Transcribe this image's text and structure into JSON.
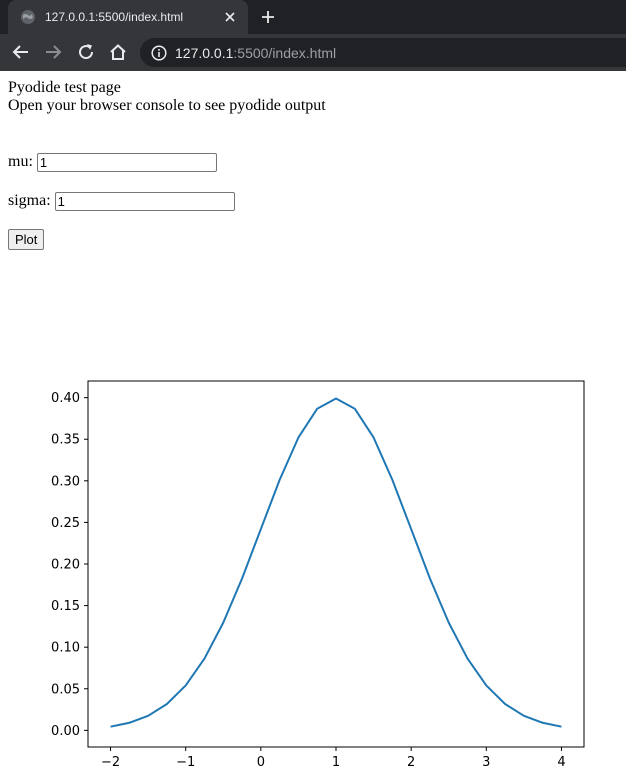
{
  "browser": {
    "tab_title": "127.0.0.1:5500/index.html",
    "url_host": "127.0.0.1",
    "url_rest": ":5500/index.html",
    "icons": [
      "globe-icon",
      "close-icon",
      "plus-icon",
      "back-arrow-icon",
      "forward-arrow-icon",
      "reload-icon",
      "home-icon",
      "info-icon"
    ]
  },
  "page": {
    "heading": "Pyodide test page",
    "subheading": "Open your browser console to see pyodide output",
    "mu_label": "mu:",
    "mu_value": "1",
    "sigma_label": "sigma:",
    "sigma_value": "1",
    "plot_button": "Plot"
  },
  "chart_data": {
    "type": "line",
    "title": "",
    "xlabel": "",
    "ylabel": "",
    "xlim": [
      -2.3,
      4.3
    ],
    "ylim": [
      -0.02,
      0.42
    ],
    "x_ticks": [
      -2,
      -1,
      0,
      1,
      2,
      3,
      4
    ],
    "x_tick_labels": [
      "−2",
      "−1",
      "0",
      "1",
      "2",
      "3",
      "4"
    ],
    "y_ticks": [
      0.0,
      0.05,
      0.1,
      0.15,
      0.2,
      0.25,
      0.3,
      0.35,
      0.4
    ],
    "y_tick_labels": [
      "0.00",
      "0.05",
      "0.10",
      "0.15",
      "0.20",
      "0.25",
      "0.30",
      "0.35",
      "0.40"
    ],
    "grid": false,
    "series": [
      {
        "color": "#1f77b4",
        "x": [
          -2.0,
          -1.75,
          -1.5,
          -1.25,
          -1.0,
          -0.75,
          -0.5,
          -0.25,
          0.0,
          0.25,
          0.5,
          0.75,
          1.0,
          1.25,
          1.5,
          1.75,
          2.0,
          2.25,
          2.5,
          2.75,
          3.0,
          3.25,
          3.5,
          3.75,
          4.0
        ],
        "y": [
          0.0044,
          0.0091,
          0.0175,
          0.0317,
          0.054,
          0.0863,
          0.1295,
          0.1826,
          0.242,
          0.3011,
          0.3521,
          0.3867,
          0.3989,
          0.3867,
          0.3521,
          0.3011,
          0.242,
          0.1826,
          0.1295,
          0.0863,
          0.054,
          0.0317,
          0.0175,
          0.0091,
          0.0044
        ]
      }
    ]
  }
}
